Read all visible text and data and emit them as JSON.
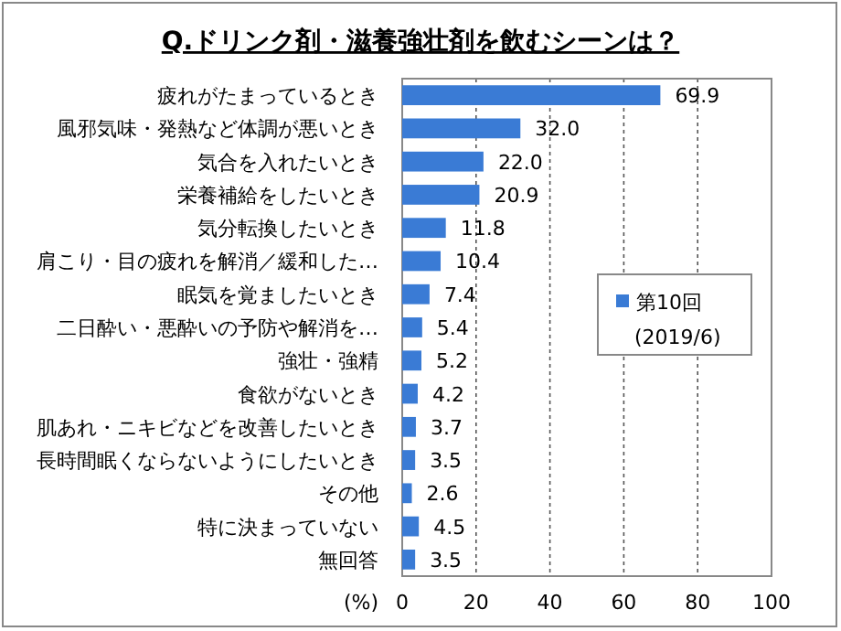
{
  "chart_data": {
    "type": "bar",
    "orientation": "horizontal",
    "title": "Q.ドリンク剤・滋養強壮剤を飲むシーンは？",
    "xlabel": "(%)",
    "categories": [
      "疲れがたまっているとき",
      "風邪気味・発熱など体調が悪いとき",
      "気合を入れたいとき",
      "栄養補給をしたいとき",
      "気分転換したいとき",
      "肩こり・目の疲れを解消／緩和した…",
      "眠気を覚ましたいとき",
      "二日酔い・悪酔いの予防や解消を…",
      "強壮・強精",
      "食欲がないとき",
      "肌あれ・ニキビなどを改善したいとき",
      "長時間眠くならないようにしたいとき",
      "その他",
      "特に決まっていない",
      "無回答"
    ],
    "series": [
      {
        "name": "第10回\n(2019/6)",
        "color": "#3a7bd5",
        "values": [
          69.9,
          32.0,
          22.0,
          20.9,
          11.8,
          10.4,
          7.4,
          5.4,
          5.2,
          4.2,
          3.7,
          3.5,
          2.6,
          4.5,
          3.5
        ],
        "value_labels": [
          "69.9",
          "32.0",
          "22.0",
          "20.9",
          "11.8",
          "10.4",
          "7.4",
          "5.4",
          "5.2",
          "4.2",
          "3.7",
          "3.5",
          "2.6",
          "4.5",
          "3.5"
        ]
      }
    ],
    "xlim": [
      0,
      100
    ],
    "xticks": [
      0,
      20,
      40,
      60,
      80,
      100
    ],
    "grid": "x",
    "legend": "right"
  }
}
